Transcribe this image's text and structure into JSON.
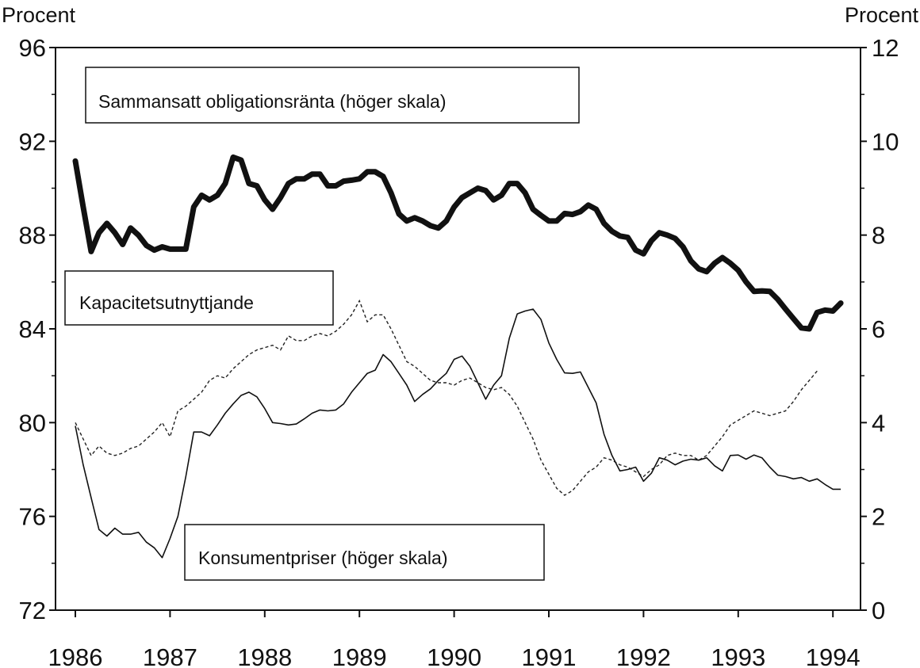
{
  "chart_data": {
    "type": "line",
    "left_axis": {
      "label": "Procent",
      "ylim": [
        72,
        96
      ],
      "ticks": [
        "96",
        "92",
        "88",
        "84",
        "80",
        "76",
        "72"
      ]
    },
    "right_axis": {
      "label": "Procent",
      "ylim": [
        0,
        12
      ],
      "ticks": [
        "12",
        "10",
        "8",
        "6",
        "4",
        "2",
        "0"
      ]
    },
    "x_axis": {
      "xlim": [
        1986,
        1994
      ],
      "ticks": [
        "1986",
        "1987",
        "1988",
        "1989",
        "1990",
        "1991",
        "1992",
        "1993",
        "1994"
      ]
    },
    "grid": false,
    "x_start": 1986,
    "x_step_months": 1,
    "series": [
      {
        "name": "Sammansatt obligationsränta (höger skala)",
        "axis": "right",
        "style": "thick",
        "values": [
          9.58,
          8.6,
          7.65,
          8.05,
          8.25,
          8.05,
          7.8,
          8.15,
          8.0,
          7.78,
          7.68,
          7.75,
          7.7,
          7.7,
          7.7,
          8.6,
          8.85,
          8.75,
          8.85,
          9.1,
          9.66,
          9.6,
          9.1,
          9.05,
          8.75,
          8.55,
          8.8,
          9.1,
          9.2,
          9.2,
          9.3,
          9.3,
          9.05,
          9.05,
          9.15,
          9.17,
          9.2,
          9.35,
          9.35,
          9.25,
          8.9,
          8.45,
          8.3,
          8.37,
          8.3,
          8.2,
          8.15,
          8.3,
          8.6,
          8.8,
          8.9,
          9.0,
          8.95,
          8.75,
          8.85,
          9.1,
          9.1,
          8.9,
          8.55,
          8.42,
          8.3,
          8.3,
          8.46,
          8.44,
          8.5,
          8.64,
          8.55,
          8.25,
          8.08,
          7.98,
          7.95,
          7.68,
          7.6,
          7.88,
          8.05,
          8.0,
          7.93,
          7.75,
          7.45,
          7.28,
          7.22,
          7.4,
          7.52,
          7.4,
          7.25,
          7.0,
          6.8,
          6.81,
          6.8,
          6.63,
          6.42,
          6.22,
          6.02,
          6.0,
          6.35,
          6.4,
          6.38,
          6.55
        ]
      },
      {
        "name": "Kapacitetsutnyttjande",
        "axis": "left",
        "style": "dashed",
        "values": [
          80.0,
          79.3,
          78.6,
          79.0,
          78.7,
          78.6,
          78.7,
          78.9,
          79.0,
          79.3,
          79.6,
          80.0,
          79.4,
          80.5,
          80.7,
          81.0,
          81.3,
          81.8,
          82.0,
          81.9,
          82.3,
          82.6,
          82.9,
          83.1,
          83.2,
          83.3,
          83.1,
          83.7,
          83.5,
          83.5,
          83.7,
          83.8,
          83.7,
          83.9,
          84.2,
          84.6,
          85.2,
          84.3,
          84.6,
          84.6,
          84.0,
          83.3,
          82.6,
          82.4,
          82.1,
          81.8,
          81.7,
          81.7,
          81.6,
          81.8,
          81.9,
          81.7,
          81.5,
          81.4,
          81.5,
          81.2,
          80.7,
          80.0,
          79.3,
          78.4,
          77.8,
          77.2,
          76.9,
          77.1,
          77.5,
          77.9,
          78.1,
          78.5,
          78.4,
          78.2,
          78.1,
          77.9,
          77.7,
          78.0,
          78.2,
          78.6,
          78.7,
          78.6,
          78.6,
          78.4,
          78.6,
          79.0,
          79.4,
          79.9,
          80.1,
          80.3,
          80.5,
          80.4,
          80.3,
          80.4,
          80.5,
          80.9,
          81.4,
          81.8,
          82.2
        ]
      },
      {
        "name": "Konsumentpriser (höger skala)",
        "axis": "right",
        "style": "thin",
        "values": [
          3.93,
          3.1,
          2.4,
          1.72,
          1.58,
          1.75,
          1.62,
          1.62,
          1.66,
          1.45,
          1.33,
          1.12,
          1.53,
          2.0,
          2.85,
          3.8,
          3.8,
          3.72,
          3.95,
          4.2,
          4.4,
          4.58,
          4.65,
          4.55,
          4.3,
          4.0,
          3.98,
          3.95,
          3.97,
          4.08,
          4.2,
          4.27,
          4.25,
          4.27,
          4.4,
          4.65,
          4.85,
          5.05,
          5.12,
          5.45,
          5.3,
          5.05,
          4.8,
          4.45,
          4.6,
          4.72,
          4.9,
          5.05,
          5.35,
          5.42,
          5.2,
          4.85,
          4.5,
          4.8,
          5.0,
          5.8,
          6.32,
          6.38,
          6.42,
          6.2,
          5.7,
          5.35,
          5.06,
          5.05,
          5.08,
          4.75,
          4.42,
          3.75,
          3.3,
          2.97,
          3.0,
          3.05,
          2.75,
          2.92,
          3.25,
          3.2,
          3.1,
          3.18,
          3.22,
          3.2,
          3.25,
          3.08,
          2.97,
          3.3,
          3.31,
          3.22,
          3.31,
          3.25,
          3.05,
          2.88,
          2.85,
          2.8,
          2.83,
          2.75,
          2.8,
          2.68,
          2.58,
          2.58
        ]
      }
    ],
    "annotations": [
      "Sammansatt obligationsränta (höger skala)",
      "Kapacitetsutnyttjande",
      "Konsumentpriser (höger skala)"
    ]
  }
}
